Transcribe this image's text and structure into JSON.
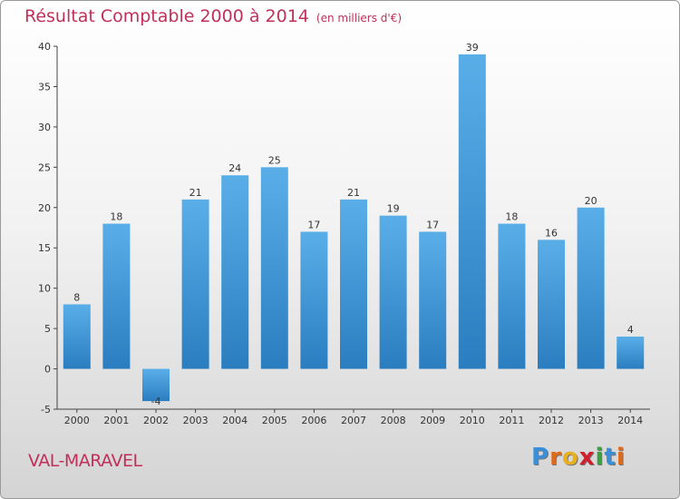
{
  "chart_data": {
    "type": "bar",
    "title": "Résultat Comptable 2000 à 2014",
    "subtitle": "(en milliers d'€)",
    "categories": [
      "2000",
      "2001",
      "2002",
      "2003",
      "2004",
      "2005",
      "2006",
      "2007",
      "2008",
      "2009",
      "2010",
      "2011",
      "2012",
      "2013",
      "2014"
    ],
    "values": [
      8,
      18,
      -4,
      21,
      24,
      25,
      17,
      21,
      19,
      17,
      39,
      18,
      16,
      20,
      4
    ],
    "data_labels": [
      "8",
      "18",
      "-4",
      "21",
      "24",
      "25",
      "17",
      "21",
      "19",
      "17",
      "39",
      "18",
      "16",
      "20",
      "4"
    ],
    "ylim": [
      -5,
      40
    ],
    "yticks": [
      -5,
      0,
      5,
      10,
      15,
      20,
      25,
      30,
      35,
      40
    ],
    "ytick_labels": [
      "-5",
      "0",
      "5",
      "10",
      "15",
      "20",
      "25",
      "30",
      "35",
      "40"
    ],
    "grid": false,
    "colors": {
      "bar_top": "#5aaee8",
      "bar_bottom": "#2a7ec0",
      "title": "#c0305a"
    }
  },
  "footer": {
    "commune": "VAL-MARAVEL"
  },
  "logo": {
    "letters": [
      "P",
      "r",
      "o",
      "x",
      "i",
      "t",
      "i"
    ],
    "colors": [
      "#3a8fd8",
      "#e06a1a",
      "#e8b020",
      "#d02030",
      "#3aa040",
      "#3a8fd8",
      "#e06a1a"
    ]
  }
}
